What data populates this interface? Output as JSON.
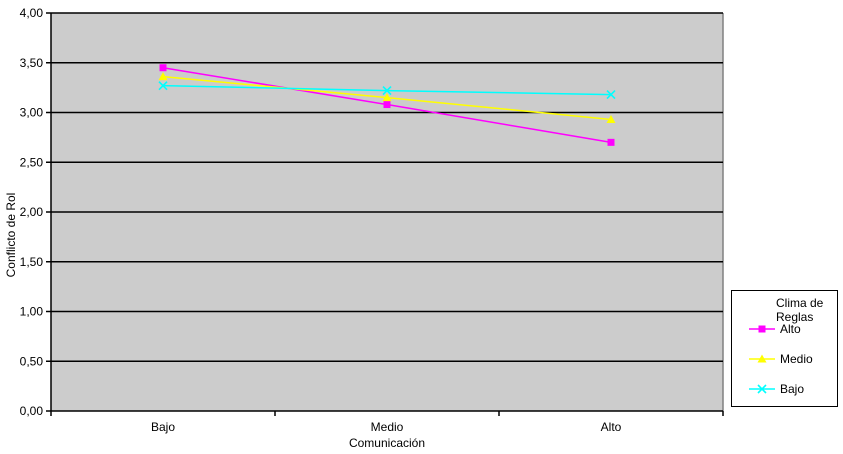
{
  "chart_data": {
    "type": "line",
    "title": "",
    "xlabel": "Comunicación",
    "ylabel": "Conflicto de Rol",
    "categories": [
      "Bajo",
      "Medio",
      "Alto"
    ],
    "series": [
      {
        "name": "Alto",
        "marker": "square",
        "color": "#FF00FF",
        "values": [
          3.45,
          3.08,
          2.7
        ]
      },
      {
        "name": "Medio",
        "marker": "triangle",
        "color": "#FFFF00",
        "values": [
          3.36,
          3.15,
          2.93
        ]
      },
      {
        "name": "Bajo",
        "marker": "x",
        "color": "#00FFFF",
        "values": [
          3.27,
          3.22,
          3.18
        ]
      }
    ],
    "ylim": [
      0.0,
      4.0
    ],
    "ytick_step": 0.5,
    "ytick_labels": [
      "0,00",
      "0,50",
      "1,00",
      "1,50",
      "2,00",
      "2,50",
      "3,00",
      "3,50",
      "4,00"
    ],
    "grid": true,
    "legend": {
      "title": "Clima de Reglas",
      "position": "right"
    },
    "colors": {
      "plot_background": "#CCCCCC",
      "gridline": "#000000",
      "axis": "#000000",
      "plot_border_right": "#808080",
      "page_background": "#FFFFFF",
      "text": "#000000"
    }
  }
}
